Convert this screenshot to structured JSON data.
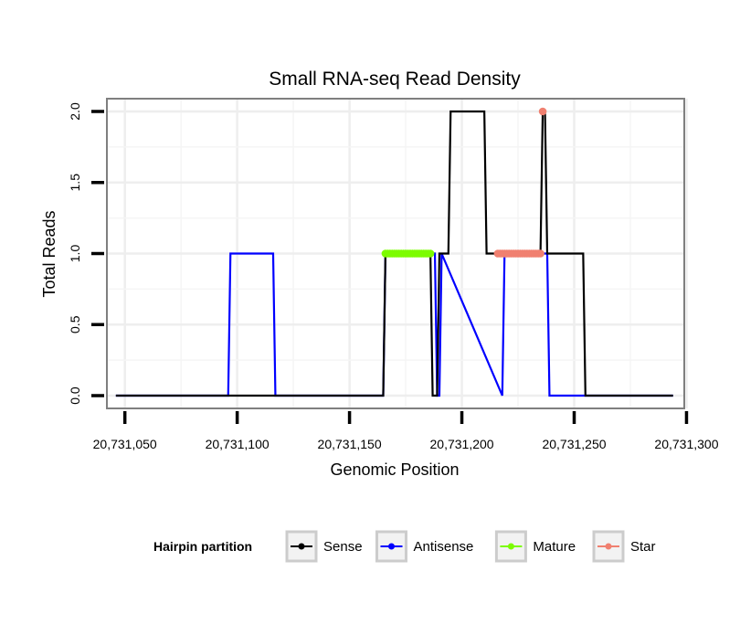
{
  "chart_data": {
    "type": "line",
    "title": "Small RNA-seq Read Density",
    "xlabel": "Genomic Position",
    "ylabel": "Total Reads",
    "xlim": [
      20731042,
      20731299
    ],
    "ylim": [
      -0.09,
      2.09
    ],
    "x_ticks": [
      20731050,
      20731100,
      20731150,
      20731200,
      20731250,
      20731300
    ],
    "x_tick_labels": [
      "20,731,050",
      "20,731,100",
      "20,731,150",
      "20,731,200",
      "20,731,250",
      "20,731,300"
    ],
    "y_ticks": [
      0,
      0.5,
      1,
      1.5,
      2
    ],
    "y_tick_labels": [
      "0.0",
      "0.5",
      "1.0",
      "1.5",
      "2.0"
    ],
    "grid": true,
    "legend": {
      "title": "Hairpin partition",
      "position": "bottom",
      "entries": [
        "Sense",
        "Antisense",
        "Mature",
        "Star"
      ]
    },
    "series": [
      {
        "name": "Sense",
        "color": "#000000",
        "style": "line",
        "x": [
          20731046,
          20731165,
          20731166,
          20731186,
          20731187,
          20731189,
          20731190,
          20731194,
          20731195,
          20731210,
          20731211,
          20731235,
          20731236,
          20731237,
          20731238,
          20731254,
          20731255,
          20731294
        ],
        "y": [
          0,
          0,
          1,
          1,
          0,
          0,
          1,
          1,
          2,
          2,
          1,
          1,
          2,
          2,
          1,
          1,
          0,
          0
        ]
      },
      {
        "name": "Antisense",
        "color": "#0000ff",
        "style": "line",
        "x": [
          20731046,
          20731096,
          20731097,
          20731116,
          20731117,
          20731165,
          20731166,
          20731188,
          20731189,
          20731190,
          20731191,
          20731218,
          20731219,
          20731238,
          20731239,
          20731294
        ],
        "y": [
          0,
          0,
          1,
          1,
          0,
          0,
          1,
          1,
          0,
          0,
          1,
          0,
          1,
          1,
          0,
          0
        ]
      },
      {
        "name": "Mature",
        "color": "#7cfc00",
        "style": "points",
        "x": [
          20731166,
          20731167,
          20731168,
          20731169,
          20731170,
          20731171,
          20731172,
          20731173,
          20731174,
          20731175,
          20731176,
          20731177,
          20731178,
          20731179,
          20731180,
          20731181,
          20731182,
          20731183,
          20731184,
          20731185,
          20731186
        ],
        "y": [
          1,
          1,
          1,
          1,
          1,
          1,
          1,
          1,
          1,
          1,
          1,
          1,
          1,
          1,
          1,
          1,
          1,
          1,
          1,
          1,
          1
        ]
      },
      {
        "name": "Star",
        "color": "#f08070",
        "style": "points",
        "x": [
          20731216,
          20731217,
          20731218,
          20731219,
          20731220,
          20731221,
          20731222,
          20731223,
          20731224,
          20731225,
          20731226,
          20731227,
          20731228,
          20731229,
          20731230,
          20731231,
          20731232,
          20731233,
          20731234,
          20731235,
          20731236
        ],
        "y": [
          1,
          1,
          1,
          1,
          1,
          1,
          1,
          1,
          1,
          1,
          1,
          1,
          1,
          1,
          1,
          1,
          1,
          1,
          1,
          1,
          2
        ]
      }
    ]
  }
}
